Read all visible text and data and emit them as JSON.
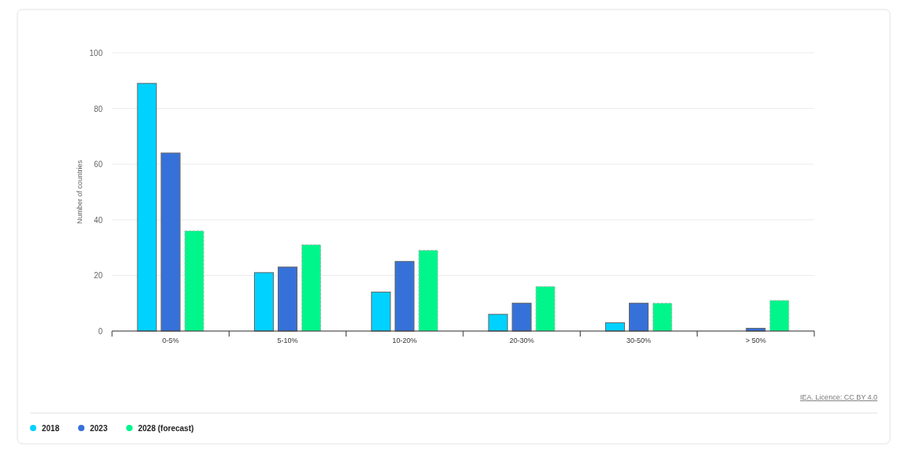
{
  "chart_data": {
    "type": "bar",
    "ylabel": "Number of countries",
    "categories": [
      "0-5%",
      "5-10%",
      "10-20%",
      "20-30%",
      "30-50%",
      "> 50%"
    ],
    "series": [
      {
        "name": "2018",
        "color": "#00d2ff",
        "values": [
          89,
          21,
          14,
          6,
          3,
          0
        ]
      },
      {
        "name": "2023",
        "color": "#3671d9",
        "values": [
          64,
          23,
          25,
          10,
          10,
          1
        ]
      },
      {
        "name": "2028 (forecast)",
        "color": "#00f58a",
        "values": [
          36,
          31,
          29,
          16,
          10,
          11
        ],
        "line_style": "dashed"
      }
    ],
    "ylim": [
      0,
      100
    ],
    "yticks": [
      0,
      20,
      40,
      60,
      80,
      100
    ],
    "grid": "y",
    "legend": "bottom left",
    "annotations": [
      "IEA. Licence: CC BY 4.0"
    ]
  }
}
